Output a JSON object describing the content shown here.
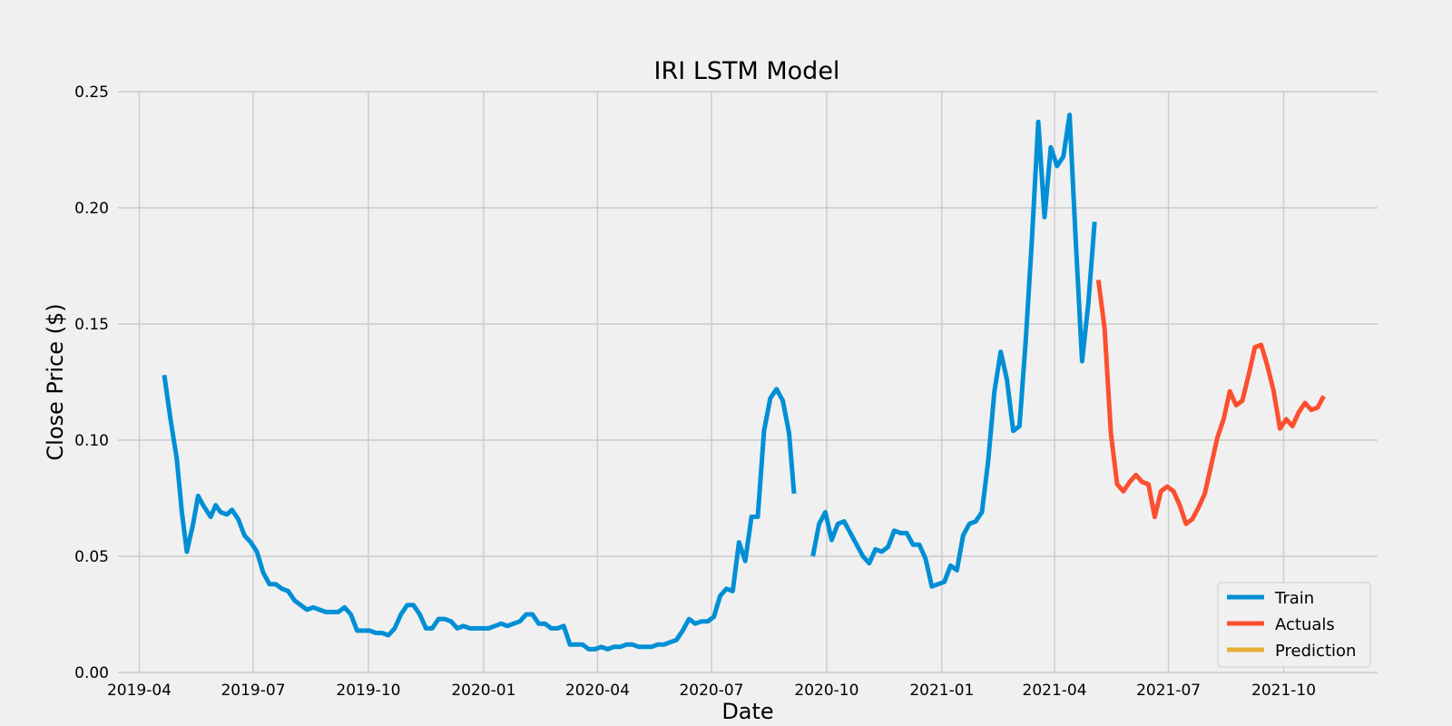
{
  "chart_data": {
    "type": "line",
    "title": "IRI LSTM Model",
    "xlabel": "Date",
    "ylabel": "Close Price ($)",
    "ylim": [
      0,
      0.25
    ],
    "xlim": [
      "2019-03-15",
      "2021-12-15"
    ],
    "x_ticks": [
      "2019-04",
      "2019-07",
      "2019-10",
      "2020-01",
      "2020-04",
      "2020-07",
      "2020-10",
      "2021-01",
      "2021-04",
      "2021-07",
      "2021-10"
    ],
    "y_ticks": [
      "0.00",
      "0.05",
      "0.10",
      "0.15",
      "0.20",
      "0.25"
    ],
    "grid": true,
    "legend_position": "lower-right",
    "colors": {
      "background": "#f0f0f0",
      "Train": "#008fd5",
      "Actuals": "#fc4f30",
      "Prediction": "#e5ae38"
    },
    "series": [
      {
        "name": "Train",
        "segments": [
          [
            [
              "2019-04-21",
              0.128
            ],
            [
              "2019-04-26",
              0.109
            ],
            [
              "2019-05-01",
              0.092
            ],
            [
              "2019-05-05",
              0.069
            ],
            [
              "2019-05-09",
              0.052
            ],
            [
              "2019-05-14",
              0.064
            ],
            [
              "2019-05-18",
              0.076
            ],
            [
              "2019-05-22",
              0.072
            ],
            [
              "2019-05-28",
              0.067
            ],
            [
              "2019-06-01",
              0.072
            ],
            [
              "2019-06-05",
              0.069
            ],
            [
              "2019-06-10",
              0.068
            ],
            [
              "2019-06-14",
              0.07
            ],
            [
              "2019-06-19",
              0.066
            ],
            [
              "2019-06-24",
              0.059
            ],
            [
              "2019-06-29",
              0.056
            ],
            [
              "2019-07-04",
              0.052
            ],
            [
              "2019-07-09",
              0.043
            ],
            [
              "2019-07-14",
              0.038
            ],
            [
              "2019-07-19",
              0.038
            ],
            [
              "2019-07-24",
              0.036
            ],
            [
              "2019-07-29",
              0.035
            ],
            [
              "2019-08-03",
              0.031
            ],
            [
              "2019-08-08",
              0.029
            ],
            [
              "2019-08-13",
              0.027
            ],
            [
              "2019-08-18",
              0.028
            ],
            [
              "2019-08-23",
              0.027
            ],
            [
              "2019-08-28",
              0.026
            ],
            [
              "2019-09-02",
              0.026
            ],
            [
              "2019-09-07",
              0.026
            ],
            [
              "2019-09-12",
              0.028
            ],
            [
              "2019-09-17",
              0.025
            ],
            [
              "2019-09-22",
              0.018
            ],
            [
              "2019-09-27",
              0.018
            ],
            [
              "2019-10-02",
              0.018
            ],
            [
              "2019-10-07",
              0.017
            ],
            [
              "2019-10-12",
              0.017
            ],
            [
              "2019-10-17",
              0.016
            ],
            [
              "2019-10-22",
              0.019
            ],
            [
              "2019-10-27",
              0.025
            ],
            [
              "2019-11-01",
              0.029
            ],
            [
              "2019-11-06",
              0.029
            ],
            [
              "2019-11-11",
              0.025
            ],
            [
              "2019-11-16",
              0.019
            ],
            [
              "2019-11-21",
              0.019
            ],
            [
              "2019-11-26",
              0.023
            ],
            [
              "2019-12-01",
              0.023
            ],
            [
              "2019-12-06",
              0.022
            ],
            [
              "2019-12-11",
              0.019
            ],
            [
              "2019-12-16",
              0.02
            ],
            [
              "2019-12-21",
              0.019
            ],
            [
              "2019-12-26",
              0.019
            ],
            [
              "2019-12-31",
              0.019
            ],
            [
              "2020-01-05",
              0.019
            ],
            [
              "2020-01-10",
              0.02
            ],
            [
              "2020-01-15",
              0.021
            ],
            [
              "2020-01-20",
              0.02
            ],
            [
              "2020-01-25",
              0.021
            ],
            [
              "2020-01-30",
              0.022
            ],
            [
              "2020-02-04",
              0.025
            ],
            [
              "2020-02-09",
              0.025
            ],
            [
              "2020-02-14",
              0.021
            ],
            [
              "2020-02-19",
              0.021
            ],
            [
              "2020-02-24",
              0.019
            ],
            [
              "2020-02-29",
              0.019
            ],
            [
              "2020-03-05",
              0.02
            ],
            [
              "2020-03-10",
              0.012
            ],
            [
              "2020-03-15",
              0.012
            ],
            [
              "2020-03-20",
              0.012
            ],
            [
              "2020-03-25",
              0.01
            ],
            [
              "2020-03-30",
              0.01
            ],
            [
              "2020-04-04",
              0.011
            ],
            [
              "2020-04-09",
              0.01
            ],
            [
              "2020-04-14",
              0.011
            ],
            [
              "2020-04-19",
              0.011
            ],
            [
              "2020-04-24",
              0.012
            ],
            [
              "2020-04-29",
              0.012
            ],
            [
              "2020-05-04",
              0.011
            ],
            [
              "2020-05-09",
              0.011
            ],
            [
              "2020-05-14",
              0.011
            ],
            [
              "2020-05-19",
              0.012
            ],
            [
              "2020-05-24",
              0.012
            ],
            [
              "2020-05-29",
              0.013
            ],
            [
              "2020-06-03",
              0.014
            ],
            [
              "2020-06-08",
              0.018
            ],
            [
              "2020-06-13",
              0.023
            ],
            [
              "2020-06-18",
              0.021
            ],
            [
              "2020-06-23",
              0.022
            ],
            [
              "2020-06-28",
              0.022
            ],
            [
              "2020-07-03",
              0.024
            ],
            [
              "2020-07-08",
              0.033
            ],
            [
              "2020-07-13",
              0.036
            ],
            [
              "2020-07-18",
              0.035
            ],
            [
              "2020-07-23",
              0.056
            ],
            [
              "2020-07-28",
              0.048
            ],
            [
              "2020-08-02",
              0.067
            ],
            [
              "2020-08-07",
              0.067
            ],
            [
              "2020-08-12",
              0.104
            ],
            [
              "2020-08-17",
              0.118
            ],
            [
              "2020-08-22",
              0.122
            ],
            [
              "2020-08-27",
              0.117
            ],
            [
              "2020-09-01",
              0.103
            ],
            [
              "2020-09-05",
              0.077
            ]
          ],
          [
            [
              "2020-09-20",
              0.05
            ],
            [
              "2020-09-25",
              0.064
            ],
            [
              "2020-09-30",
              0.069
            ],
            [
              "2020-10-05",
              0.057
            ],
            [
              "2020-10-10",
              0.064
            ],
            [
              "2020-10-15",
              0.065
            ],
            [
              "2020-10-20",
              0.06
            ],
            [
              "2020-10-25",
              0.055
            ],
            [
              "2020-10-30",
              0.05
            ],
            [
              "2020-11-04",
              0.047
            ],
            [
              "2020-11-09",
              0.053
            ],
            [
              "2020-11-14",
              0.052
            ],
            [
              "2020-11-19",
              0.054
            ],
            [
              "2020-11-24",
              0.061
            ],
            [
              "2020-11-29",
              0.06
            ],
            [
              "2020-12-04",
              0.06
            ],
            [
              "2020-12-09",
              0.055
            ],
            [
              "2020-12-14",
              0.055
            ],
            [
              "2020-12-19",
              0.049
            ],
            [
              "2020-12-24",
              0.037
            ],
            [
              "2020-12-29",
              0.038
            ],
            [
              "2021-01-03",
              0.039
            ],
            [
              "2021-01-08",
              0.046
            ],
            [
              "2021-01-13",
              0.044
            ],
            [
              "2021-01-18",
              0.059
            ],
            [
              "2021-01-23",
              0.064
            ],
            [
              "2021-01-28",
              0.065
            ],
            [
              "2021-02-02",
              0.069
            ],
            [
              "2021-02-07",
              0.091
            ],
            [
              "2021-02-12",
              0.121
            ],
            [
              "2021-02-17",
              0.138
            ],
            [
              "2021-02-22",
              0.126
            ],
            [
              "2021-02-27",
              0.104
            ],
            [
              "2021-03-04",
              0.106
            ],
            [
              "2021-03-09",
              0.143
            ],
            [
              "2021-03-14",
              0.187
            ],
            [
              "2021-03-19",
              0.237
            ],
            [
              "2021-03-24",
              0.196
            ],
            [
              "2021-03-29",
              0.226
            ],
            [
              "2021-04-03",
              0.218
            ],
            [
              "2021-04-08",
              0.222
            ],
            [
              "2021-04-13",
              0.24
            ],
            [
              "2021-04-18",
              0.185
            ],
            [
              "2021-04-23",
              0.134
            ],
            [
              "2021-04-28",
              0.159
            ],
            [
              "2021-05-03",
              0.194
            ]
          ]
        ]
      },
      {
        "name": "Actuals",
        "segments": [
          [
            [
              "2021-05-06",
              0.169
            ],
            [
              "2021-05-11",
              0.148
            ],
            [
              "2021-05-16",
              0.103
            ],
            [
              "2021-05-21",
              0.081
            ],
            [
              "2021-05-26",
              0.078
            ],
            [
              "2021-05-31",
              0.082
            ],
            [
              "2021-06-05",
              0.085
            ],
            [
              "2021-06-10",
              0.082
            ],
            [
              "2021-06-15",
              0.081
            ],
            [
              "2021-06-20",
              0.067
            ],
            [
              "2021-06-25",
              0.078
            ],
            [
              "2021-06-30",
              0.08
            ],
            [
              "2021-07-05",
              0.078
            ],
            [
              "2021-07-10",
              0.072
            ],
            [
              "2021-07-15",
              0.064
            ],
            [
              "2021-07-20",
              0.066
            ],
            [
              "2021-07-25",
              0.071
            ],
            [
              "2021-07-30",
              0.077
            ],
            [
              "2021-08-04",
              0.089
            ],
            [
              "2021-08-09",
              0.101
            ],
            [
              "2021-08-14",
              0.109
            ],
            [
              "2021-08-19",
              0.121
            ],
            [
              "2021-08-24",
              0.115
            ],
            [
              "2021-08-29",
              0.117
            ],
            [
              "2021-09-03",
              0.128
            ],
            [
              "2021-09-08",
              0.14
            ],
            [
              "2021-09-13",
              0.141
            ],
            [
              "2021-09-18",
              0.132
            ],
            [
              "2021-09-23",
              0.121
            ],
            [
              "2021-09-28",
              0.105
            ],
            [
              "2021-10-03",
              0.109
            ],
            [
              "2021-10-08",
              0.106
            ],
            [
              "2021-10-13",
              0.112
            ],
            [
              "2021-10-18",
              0.116
            ],
            [
              "2021-10-23",
              0.113
            ],
            [
              "2021-10-28",
              0.114
            ],
            [
              "2021-11-02",
              0.119
            ]
          ]
        ]
      },
      {
        "name": "Prediction",
        "segments": []
      }
    ]
  }
}
